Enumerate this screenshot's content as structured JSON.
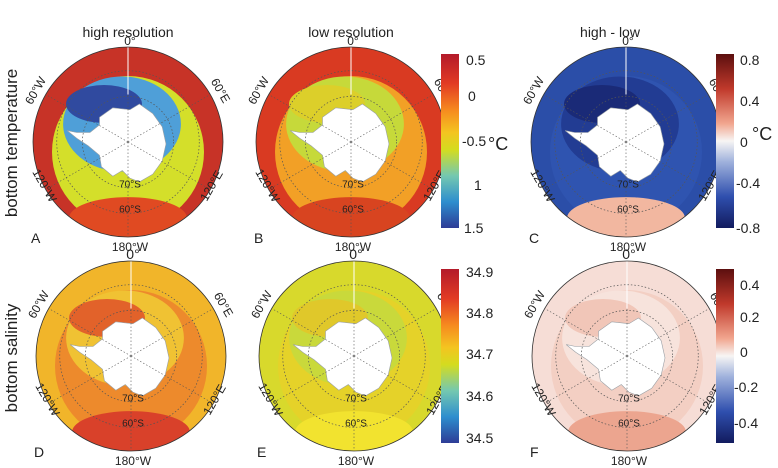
{
  "column_titles": [
    "high resolution",
    "low resolution",
    "high - low"
  ],
  "row_titles": [
    "bottom temperature",
    "bottom salinity"
  ],
  "panel_letters": [
    "A",
    "B",
    "C",
    "D",
    "E",
    "F"
  ],
  "map_labels": {
    "lon_0": "0°",
    "lon_60W": "60°W",
    "lon_60E": "60°E",
    "lon_120W": "120°W",
    "lon_120E": "120°E",
    "lon_180W": "180°W",
    "lat_70S": "70°S",
    "lat_60S": "60°S"
  },
  "colorbars": {
    "temperature": {
      "ticks": [
        "0.5",
        "0",
        "-0.5",
        "1",
        "1.5"
      ],
      "unit": "°C",
      "colors": [
        "#c0192c",
        "#e23b24",
        "#f6891f",
        "#fbd022",
        "#d7dc1c",
        "#6cc6b5",
        "#2b8fce",
        "#2e3e9a"
      ]
    },
    "temperature_diff": {
      "ticks": [
        "0.8",
        "0.4",
        "0",
        "-0.4",
        "-0.8"
      ],
      "unit": "°C",
      "colors": [
        "#6b1010",
        "#c0392b",
        "#f3a58f",
        "#f7f3f2",
        "#8fa4d8",
        "#2d4fb0",
        "#141d63"
      ]
    },
    "salinity": {
      "ticks": [
        "34.9",
        "34.8",
        "34.7",
        "34.6",
        "34.5"
      ],
      "colors": [
        "#c0192c",
        "#e23b24",
        "#f6891f",
        "#fbd022",
        "#d7dc1c",
        "#6cc6b5",
        "#2b8fce",
        "#2e3e9a"
      ]
    },
    "salinity_diff": {
      "ticks": [
        "0.4",
        "0.2",
        "0",
        "-0.2",
        "-0.4"
      ],
      "colors": [
        "#6b1010",
        "#c0392b",
        "#f3a58f",
        "#f7f3f2",
        "#8fa4d8",
        "#2d4fb0",
        "#141d63"
      ]
    }
  },
  "map_colors": {
    "A": {
      "outer": "#c73327",
      "mid": "#d4df2a",
      "inner": "#4f9fd8",
      "deep": "#304a9f",
      "south": "#e04a22"
    },
    "B": {
      "outer": "#d93a22",
      "mid": "#f2a026",
      "inner": "#c6d93a",
      "deep": "#dccf2a",
      "south": "#d84420"
    },
    "C": {
      "outer": "#2b4ea8",
      "mid": "#2f54b0",
      "inner": "#223c93",
      "deep": "#1a2a77",
      "south": "#f2b7a0"
    },
    "D": {
      "outer": "#f1b52a",
      "mid": "#ed8a2c",
      "inner": "#f0c233",
      "deep": "#e2622a",
      "south": "#d9412a"
    },
    "E": {
      "outer": "#d8d92c",
      "mid": "#e5d229",
      "inner": "#c9d93b",
      "deep": "#e0c82a",
      "south": "#f2e32f"
    },
    "F": {
      "outer": "#f6ddd6",
      "mid": "#f3cfc3",
      "inner": "#f7e3dc",
      "deep": "#f1c6b8",
      "south": "#eca58f"
    }
  }
}
